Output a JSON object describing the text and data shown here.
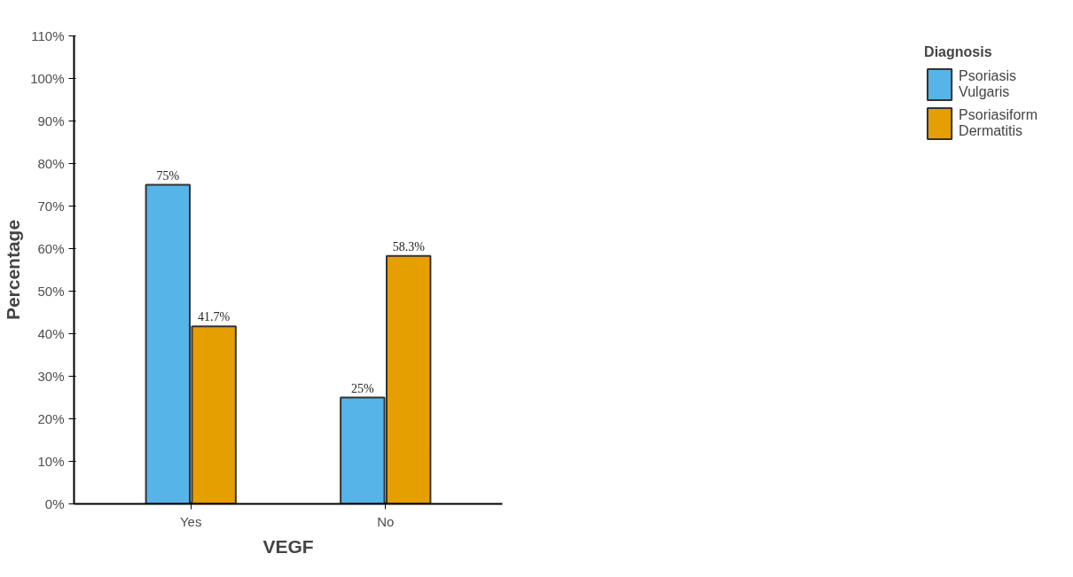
{
  "chart_data": {
    "type": "bar",
    "xlabel": "VEGF",
    "ylabel": "Percentage",
    "legend_title": "Diagnosis",
    "categories": [
      "Yes",
      "No"
    ],
    "series": [
      {
        "name": "Psoriasis\nVulgaris",
        "color": "#56b4e9",
        "values": [
          75,
          25
        ],
        "value_labels": [
          "75%",
          "25%"
        ]
      },
      {
        "name": "Psoriasiform\nDermatitis",
        "color": "#e69f00",
        "values": [
          41.7,
          58.3
        ],
        "value_labels": [
          "41.7%",
          "58.3%"
        ]
      }
    ],
    "ylim": [
      0,
      110
    ],
    "yticks": [
      {
        "value": 0,
        "label": "0%"
      },
      {
        "value": 10,
        "label": "10%"
      },
      {
        "value": 20,
        "label": "20%"
      },
      {
        "value": 30,
        "label": "30%"
      },
      {
        "value": 40,
        "label": "40%"
      },
      {
        "value": 50,
        "label": "50%"
      },
      {
        "value": 60,
        "label": "60%"
      },
      {
        "value": 70,
        "label": "70%"
      },
      {
        "value": 80,
        "label": "80%"
      },
      {
        "value": 90,
        "label": "90%"
      },
      {
        "value": 100,
        "label": "100%"
      },
      {
        "value": 110,
        "label": "110%"
      }
    ],
    "legend": "right",
    "grid": false
  }
}
